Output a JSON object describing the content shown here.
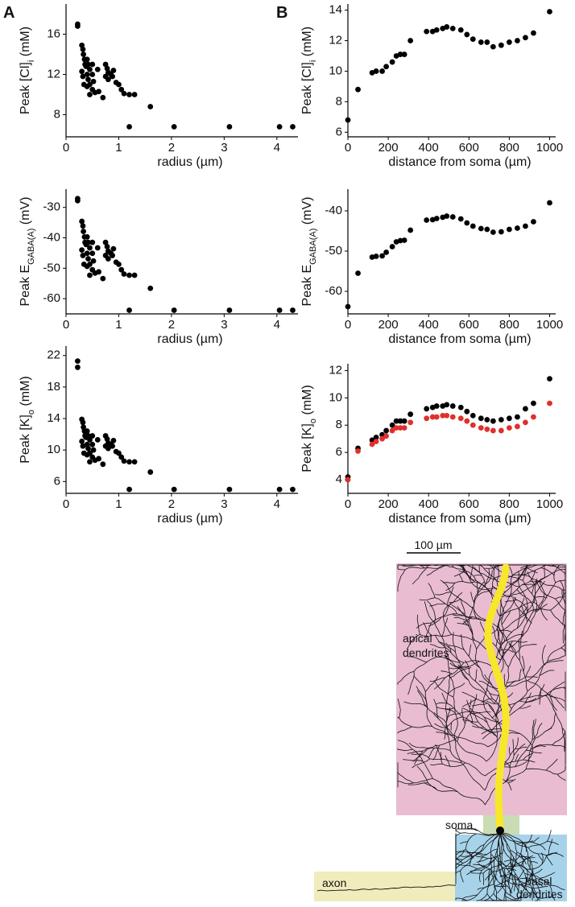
{
  "panel_labels": [
    "A",
    "B"
  ],
  "chart_data": [
    {
      "type": "scatter",
      "xlabel": "radius (µm)",
      "ylabel": [
        "Peak [Cl]",
        "i",
        " (mM)"
      ],
      "xlim": [
        0,
        4.4
      ],
      "xticks": [
        0,
        1,
        2,
        3,
        4
      ],
      "ylim": [
        5.8,
        19
      ],
      "yticks": [
        8,
        12,
        16
      ],
      "x": [
        0.22,
        0.22,
        0.3,
        0.32,
        0.33,
        0.35,
        0.36,
        0.38,
        0.3,
        0.32,
        0.34,
        0.4,
        0.42,
        0.45,
        0.4,
        0.42,
        0.45,
        0.5,
        0.5,
        0.52,
        0.5,
        0.55,
        0.6,
        0.62,
        0.4,
        0.45,
        0.7,
        0.75,
        0.78,
        0.8,
        0.85,
        0.9,
        0.88,
        0.75,
        0.8,
        0.95,
        1.0,
        1.05,
        1.1,
        1.2,
        1.3,
        1.6,
        1.2,
        2.05,
        3.1,
        4.05,
        4.3
      ],
      "series": [
        {
          "color": "#000000",
          "values": [
            17.0,
            16.8,
            14.9,
            14.5,
            14.0,
            13.5,
            13.0,
            12.8,
            12.3,
            11.8,
            11.0,
            13.5,
            13.0,
            12.5,
            12.0,
            11.5,
            11.0,
            13.0,
            12.0,
            11.3,
            10.5,
            10.2,
            12.5,
            10.3,
            10.8,
            10.0,
            9.7,
            13.0,
            12.6,
            12.2,
            12.0,
            12.4,
            11.8,
            11.8,
            11.5,
            11.2,
            11.0,
            10.5,
            10.1,
            10.0,
            10.0,
            8.8,
            6.8,
            6.8,
            6.8,
            6.8,
            6.8
          ]
        }
      ]
    },
    {
      "type": "scatter",
      "xlabel": "distance from soma (µm)",
      "ylabel": [
        "Peak [Cl]",
        "i",
        " (mM)"
      ],
      "xlim": [
        0,
        1030
      ],
      "xticks": [
        0,
        200,
        400,
        600,
        800,
        1000
      ],
      "ylim": [
        5.7,
        14.4
      ],
      "yticks": [
        6,
        8,
        10,
        12,
        14
      ],
      "x": [
        0,
        50,
        120,
        140,
        170,
        190,
        220,
        240,
        260,
        280,
        310,
        390,
        420,
        440,
        470,
        490,
        520,
        560,
        590,
        620,
        660,
        690,
        720,
        760,
        800,
        840,
        880,
        920,
        1000
      ],
      "series": [
        {
          "color": "#000000",
          "values": [
            6.8,
            8.8,
            9.9,
            10.0,
            10.0,
            10.3,
            10.6,
            11.0,
            11.1,
            11.1,
            12.0,
            12.6,
            12.6,
            12.7,
            12.8,
            12.9,
            12.8,
            12.7,
            12.4,
            12.1,
            11.9,
            11.9,
            11.6,
            11.7,
            11.9,
            12.0,
            12.2,
            12.5,
            13.9
          ]
        }
      ]
    },
    {
      "type": "scatter",
      "xlabel": "radius (µm)",
      "ylabel": [
        "Peak E",
        "GABA(A)",
        " (mV)"
      ],
      "xlim": [
        0,
        4.4
      ],
      "xticks": [
        0,
        1,
        2,
        3,
        4
      ],
      "ylim": [
        -65,
        -24
      ],
      "yticks": [
        -60,
        -50,
        -40,
        -30
      ],
      "x": [
        0.22,
        0.22,
        0.3,
        0.32,
        0.33,
        0.35,
        0.36,
        0.38,
        0.3,
        0.32,
        0.34,
        0.4,
        0.42,
        0.45,
        0.4,
        0.42,
        0.45,
        0.5,
        0.5,
        0.52,
        0.5,
        0.55,
        0.6,
        0.62,
        0.4,
        0.45,
        0.7,
        0.75,
        0.78,
        0.8,
        0.85,
        0.9,
        0.88,
        0.75,
        0.8,
        0.95,
        1.0,
        1.05,
        1.1,
        1.2,
        1.3,
        1.6,
        1.2,
        2.05,
        3.1,
        4.05,
        4.3
      ],
      "series": [
        {
          "color": "#000000",
          "values": [
            -27.1,
            -27.8,
            -34.6,
            -36.1,
            -37.9,
            -39.7,
            -41.5,
            -42.2,
            -44.0,
            -45.8,
            -48.7,
            -39.7,
            -41.5,
            -43.3,
            -45.1,
            -46.9,
            -48.7,
            -41.5,
            -45.1,
            -47.6,
            -50.5,
            -51.6,
            -43.3,
            -51.2,
            -49.4,
            -52.3,
            -53.4,
            -41.5,
            -42.9,
            -44.4,
            -45.1,
            -43.6,
            -45.8,
            -45.8,
            -46.9,
            -48.0,
            -48.7,
            -50.5,
            -51.9,
            -52.3,
            -52.3,
            -56.6,
            -63.8,
            -63.8,
            -63.8,
            -63.8,
            -63.8
          ]
        }
      ]
    },
    {
      "type": "scatter",
      "xlabel": "distance from soma (µm)",
      "ylabel": [
        "Peak E",
        "GABA(A)",
        " (mV)"
      ],
      "xlim": [
        0,
        1030
      ],
      "xticks": [
        0,
        200,
        400,
        600,
        800,
        1000
      ],
      "ylim": [
        -65.6,
        -34.6
      ],
      "yticks": [
        -60,
        -50,
        -40
      ],
      "x": [
        0,
        50,
        120,
        140,
        170,
        190,
        220,
        240,
        260,
        280,
        310,
        390,
        420,
        440,
        470,
        490,
        520,
        560,
        590,
        620,
        660,
        690,
        720,
        760,
        800,
        840,
        880,
        920,
        1000
      ],
      "series": [
        {
          "color": "#000000",
          "values": [
            -63.8,
            -55.5,
            -51.5,
            -51.3,
            -51.2,
            -50.3,
            -48.9,
            -47.7,
            -47.4,
            -47.3,
            -44.8,
            -42.3,
            -42.2,
            -41.9,
            -41.6,
            -41.3,
            -41.5,
            -42.0,
            -43.0,
            -43.8,
            -44.4,
            -44.6,
            -45.3,
            -45.2,
            -44.6,
            -44.3,
            -43.8,
            -42.7,
            -38.0
          ]
        }
      ]
    },
    {
      "type": "scatter",
      "xlabel": "radius (µm)",
      "ylabel": [
        "Peak [K]",
        "o",
        " (mM)"
      ],
      "xlim": [
        0,
        4.4
      ],
      "xticks": [
        0,
        1,
        2,
        3,
        4
      ],
      "ylim": [
        4.5,
        23.2
      ],
      "yticks": [
        6,
        10,
        14,
        18,
        22
      ],
      "x": [
        0.22,
        0.22,
        0.3,
        0.32,
        0.33,
        0.35,
        0.36,
        0.38,
        0.3,
        0.32,
        0.34,
        0.4,
        0.42,
        0.45,
        0.4,
        0.42,
        0.45,
        0.5,
        0.5,
        0.52,
        0.5,
        0.55,
        0.6,
        0.62,
        0.4,
        0.45,
        0.7,
        0.75,
        0.78,
        0.8,
        0.85,
        0.9,
        0.88,
        0.75,
        0.8,
        0.95,
        1.0,
        1.05,
        1.1,
        1.2,
        1.3,
        1.6,
        1.2,
        2.05,
        3.1,
        4.05,
        4.3
      ],
      "series": [
        {
          "color": "#000000",
          "values": [
            21.3,
            20.5,
            13.9,
            13.5,
            12.9,
            12.4,
            11.8,
            11.6,
            11.1,
            10.5,
            9.6,
            12.4,
            11.8,
            11.3,
            10.7,
            10.2,
            9.6,
            11.8,
            10.7,
            10.0,
            9.1,
            8.7,
            11.3,
            8.9,
            9.4,
            8.5,
            8.2,
            11.8,
            11.4,
            10.9,
            10.7,
            11.2,
            10.5,
            10.5,
            10.2,
            9.8,
            9.6,
            9.1,
            8.6,
            8.5,
            8.5,
            7.2,
            5,
            5,
            5,
            5,
            5
          ]
        }
      ]
    },
    {
      "type": "scatter",
      "xlabel": "distance from soma (µm)",
      "ylabel": [
        "Peak [K]",
        "o",
        " (mM)"
      ],
      "xlim": [
        0,
        1030
      ],
      "xticks": [
        0,
        200,
        400,
        600,
        800,
        1000
      ],
      "ylim": [
        3,
        12.5
      ],
      "yticks": [
        4,
        6,
        8,
        10,
        12
      ],
      "x": [
        0,
        50,
        120,
        140,
        170,
        190,
        220,
        240,
        260,
        280,
        310,
        390,
        420,
        440,
        470,
        490,
        520,
        560,
        590,
        620,
        660,
        690,
        720,
        760,
        800,
        840,
        880,
        920,
        1000
      ],
      "series": [
        {
          "color": "#000000",
          "values": [
            4.2,
            6.3,
            6.9,
            7.1,
            7.3,
            7.6,
            8.0,
            8.3,
            8.3,
            8.3,
            8.8,
            9.2,
            9.3,
            9.4,
            9.4,
            9.5,
            9.4,
            9.3,
            9.0,
            8.7,
            8.5,
            8.4,
            8.3,
            8.4,
            8.5,
            8.6,
            9.2,
            9.6,
            11.4
          ]
        },
        {
          "color": "#e0302c",
          "values": [
            4.0,
            6.1,
            6.6,
            6.8,
            7.0,
            7.2,
            7.6,
            7.8,
            7.8,
            7.8,
            8.2,
            8.5,
            8.6,
            8.6,
            8.7,
            8.7,
            8.6,
            8.5,
            8.3,
            8.0,
            7.8,
            7.7,
            7.6,
            7.6,
            7.8,
            7.9,
            8.2,
            8.6,
            9.6
          ]
        }
      ]
    }
  ],
  "diagram": {
    "scale_bar": "100 µm",
    "apical_label": [
      "apical",
      "dendrites"
    ],
    "soma_label": "soma",
    "axon_label": "axon",
    "basal_label": [
      "basal",
      "dendrites"
    ]
  }
}
